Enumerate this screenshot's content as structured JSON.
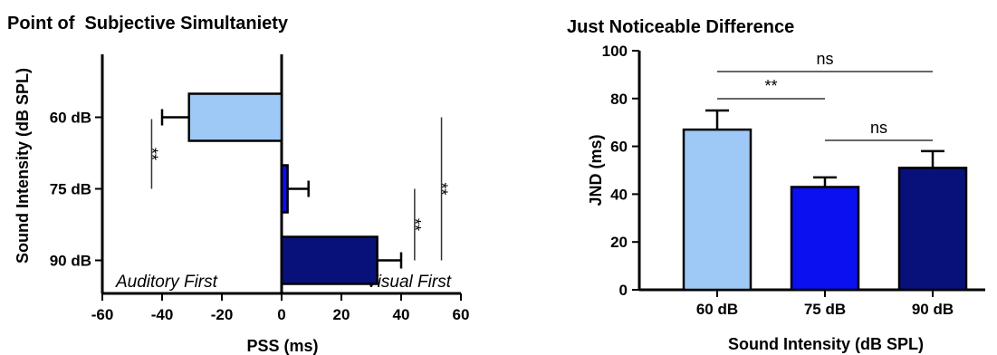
{
  "chart_data": [
    {
      "type": "bar",
      "orientation": "horizontal",
      "title": "Point of  Subjective Simultaniety",
      "xlabel": "PSS (ms)",
      "ylabel": "Sound Intensity (dB SPL)",
      "xlim": [
        -60,
        60
      ],
      "xticks": [
        "-60",
        "-40",
        "-20",
        "0",
        "20",
        "40",
        "60"
      ],
      "categories": [
        "60 dB",
        "75 dB",
        "90 dB"
      ],
      "values": [
        -31,
        2,
        32
      ],
      "errors": [
        9,
        7,
        8
      ],
      "colors": [
        "#9ec8f5",
        "#0b10f0",
        "#08107a"
      ],
      "annotations": {
        "left": "Auditory First",
        "right": "Visual First"
      },
      "significance": [
        {
          "label": "**",
          "pair": [
            "60 dB",
            "75 dB"
          ]
        },
        {
          "label": "**",
          "pair": [
            "75 dB",
            "90 dB"
          ]
        },
        {
          "label": "**",
          "pair": [
            "60 dB",
            "90 dB"
          ]
        }
      ],
      "grid": false
    },
    {
      "type": "bar",
      "title": "Just Noticeable Difference",
      "xlabel": "Sound Intensity (dB SPL)",
      "ylabel": "JND (ms)",
      "ylim": [
        0,
        100
      ],
      "yticks": [
        "0",
        "20",
        "40",
        "60",
        "80",
        "100"
      ],
      "categories": [
        "60 dB",
        "75 dB",
        "90 dB"
      ],
      "values": [
        67,
        43,
        51
      ],
      "errors": [
        8,
        4,
        7
      ],
      "colors": [
        "#9ec8f5",
        "#0b10f0",
        "#08107a"
      ],
      "significance": [
        {
          "label": "ns",
          "pair": [
            "60 dB",
            "90 dB"
          ]
        },
        {
          "label": "**",
          "pair": [
            "60 dB",
            "75 dB"
          ]
        },
        {
          "label": "ns",
          "pair": [
            "75 dB",
            "90 dB"
          ]
        }
      ],
      "grid": false
    }
  ]
}
